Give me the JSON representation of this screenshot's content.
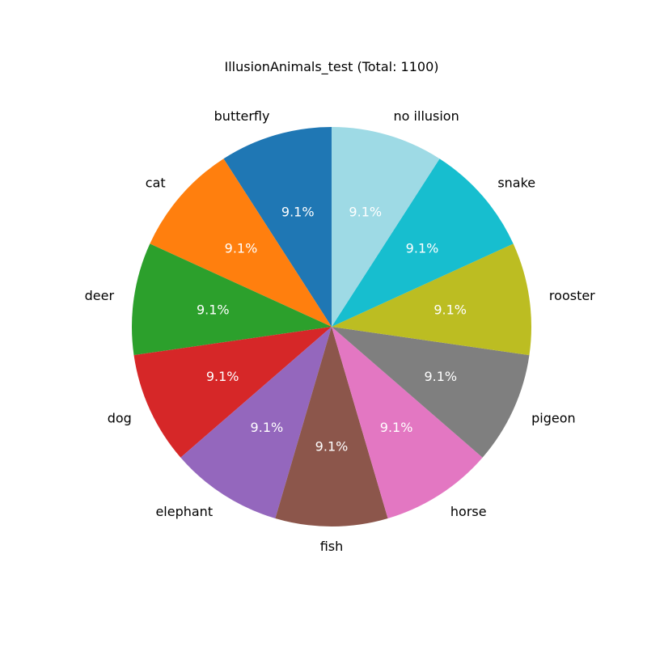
{
  "chart_data": {
    "type": "pie",
    "title": "IllusionAnimals_test (Total: 1100)",
    "start_angle_deg": 90,
    "direction": "counterclockwise",
    "slices": [
      {
        "label": "butterfly",
        "value": 100,
        "pct_label": "9.1%",
        "color": "#1f77b4"
      },
      {
        "label": "cat",
        "value": 100,
        "pct_label": "9.1%",
        "color": "#ff7f0e"
      },
      {
        "label": "deer",
        "value": 100,
        "pct_label": "9.1%",
        "color": "#2ca02c"
      },
      {
        "label": "dog",
        "value": 100,
        "pct_label": "9.1%",
        "color": "#d62728"
      },
      {
        "label": "elephant",
        "value": 100,
        "pct_label": "9.1%",
        "color": "#9467bd"
      },
      {
        "label": "fish",
        "value": 100,
        "pct_label": "9.1%",
        "color": "#8c564b"
      },
      {
        "label": "horse",
        "value": 100,
        "pct_label": "9.1%",
        "color": "#e377c2"
      },
      {
        "label": "pigeon",
        "value": 100,
        "pct_label": "9.1%",
        "color": "#7f7f7f"
      },
      {
        "label": "rooster",
        "value": 100,
        "pct_label": "9.1%",
        "color": "#bcbd22"
      },
      {
        "label": "snake",
        "value": 100,
        "pct_label": "9.1%",
        "color": "#17becf"
      },
      {
        "label": "no illusion",
        "value": 100,
        "pct_label": "9.1%",
        "color": "#9edae5"
      }
    ]
  }
}
